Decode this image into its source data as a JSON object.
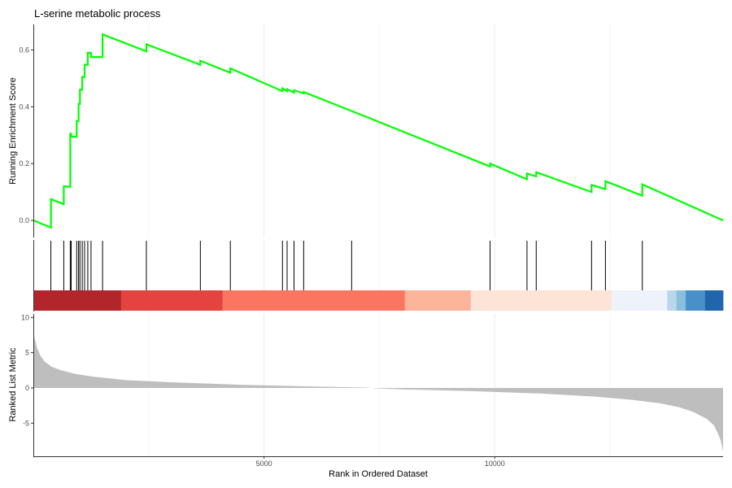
{
  "chart_data": {
    "type": "line",
    "title": "L-serine metabolic process",
    "xlabel": "Rank in Ordered Dataset",
    "x_ticks": [
      5000,
      10000
    ],
    "x_range": [
      0,
      14950
    ],
    "grid": "vertical",
    "panels": {
      "enrichment": {
        "ylabel": "Running Enrichment Score",
        "ylim": [
          -0.06,
          0.69
        ],
        "y_ticks": [
          0.0,
          0.2,
          0.4,
          0.6
        ],
        "line_color": "#00ff00",
        "series": [
          {
            "x": [
              0,
              380,
              380,
              660,
              660,
              800,
              800,
              820,
              820,
              940,
              940,
              980,
              980,
              1010,
              1010,
              1060,
              1060,
              1110,
              1110,
              1180,
              1180,
              1250,
              1250,
              1500,
              1500,
              2450,
              2450,
              3620,
              3620,
              4270,
              4270,
              5400,
              5400,
              5500,
              5500,
              5650,
              5650,
              5860,
              5860,
              6900,
              9900,
              9900,
              10700,
              10700,
              10900,
              10900,
              12100,
              12100,
              12400,
              12400,
              13200,
              13200,
              14950
            ],
            "y": [
              0.0,
              -0.025,
              0.075,
              0.057,
              0.12,
              0.118,
              0.305,
              0.305,
              0.295,
              0.295,
              0.35,
              0.35,
              0.41,
              0.41,
              0.46,
              0.46,
              0.505,
              0.505,
              0.548,
              0.548,
              0.59,
              0.59,
              0.575,
              0.575,
              0.655,
              0.595,
              0.62,
              0.548,
              0.562,
              0.52,
              0.535,
              0.455,
              0.465,
              0.455,
              0.462,
              0.45,
              0.458,
              0.447,
              0.452,
              0.385,
              0.19,
              0.2,
              0.145,
              0.165,
              0.155,
              0.17,
              0.1,
              0.125,
              0.11,
              0.138,
              0.087,
              0.127,
              0.0
            ]
          }
        ]
      },
      "hits": {
        "positions": [
          380,
          660,
          800,
          820,
          940,
          980,
          1010,
          1060,
          1110,
          1180,
          1250,
          1500,
          2450,
          3620,
          4270,
          5400,
          5500,
          5650,
          5860,
          6900,
          9900,
          10700,
          10900,
          12100,
          12400,
          13200
        ]
      },
      "color_bar": {
        "segments": [
          {
            "start": 0,
            "end": 1900,
            "color": "#b2262b"
          },
          {
            "start": 1900,
            "end": 4100,
            "color": "#e34440"
          },
          {
            "start": 4100,
            "end": 8050,
            "color": "#fb7660"
          },
          {
            "start": 8050,
            "end": 9480,
            "color": "#fcb49a"
          },
          {
            "start": 9480,
            "end": 12530,
            "color": "#fee3d7"
          },
          {
            "start": 12530,
            "end": 13740,
            "color": "#eef3fb"
          },
          {
            "start": 13740,
            "end": 13940,
            "color": "#bad6ea"
          },
          {
            "start": 13940,
            "end": 14140,
            "color": "#89bedc"
          },
          {
            "start": 14140,
            "end": 14560,
            "color": "#4a90c8"
          },
          {
            "start": 14560,
            "end": 14950,
            "color": "#2066ac"
          }
        ]
      },
      "ranked": {
        "ylabel": "Ranked List Metric",
        "ylim": [
          -9.7,
          10.5
        ],
        "y_ticks": [
          10,
          5,
          0,
          -5
        ],
        "fill_color": "#bebebe",
        "series": [
          {
            "x": [
              0,
              30,
              80,
              150,
              250,
              400,
              600,
              900,
              1300,
              2000,
              3000,
              4500,
              6000,
              7200,
              7400,
              8000,
              9500,
              11000,
              12200,
              13000,
              13600,
              14000,
              14300,
              14600,
              14750,
              14850,
              14900,
              14950
            ],
            "y": [
              8.0,
              7.0,
              5.7,
              4.6,
              3.7,
              3.0,
              2.5,
              2.0,
              1.6,
              1.1,
              0.8,
              0.45,
              0.22,
              0.05,
              -0.05,
              -0.2,
              -0.45,
              -0.8,
              -1.25,
              -1.7,
              -2.2,
              -2.75,
              -3.4,
              -4.4,
              -5.3,
              -6.6,
              -7.5,
              -9.0
            ]
          }
        ]
      }
    }
  }
}
